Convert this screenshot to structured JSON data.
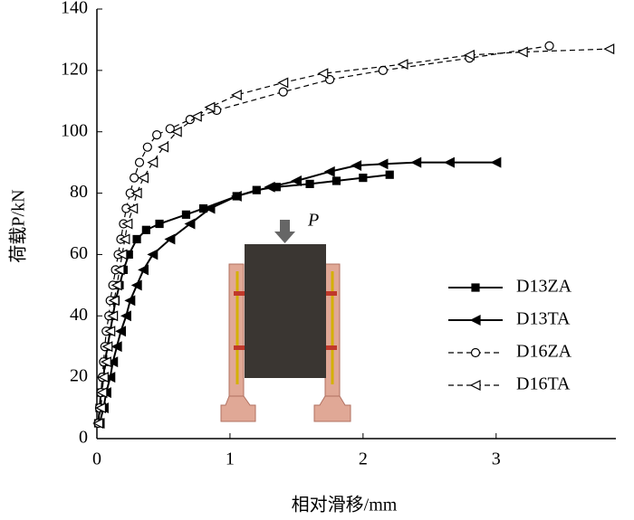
{
  "chart_data": {
    "type": "line",
    "xlabel": "相对滑移/mm",
    "ylabel": "荷载P/kN",
    "annotation": "P",
    "xlim": [
      0,
      3.9
    ],
    "ylim": [
      0,
      140
    ],
    "xticks": [
      0,
      1,
      2,
      3
    ],
    "yticks": [
      0,
      20,
      40,
      60,
      80,
      100,
      120,
      140
    ],
    "grid": false,
    "legend": "lower right",
    "series": [
      {
        "name": "D13ZA",
        "color": "#000000",
        "marker": "square",
        "filled": true,
        "dashed": false,
        "x": [
          0.01,
          0.02,
          0.03,
          0.05,
          0.06,
          0.08,
          0.1,
          0.12,
          0.14,
          0.17,
          0.2,
          0.24,
          0.3,
          0.37,
          0.47,
          0.67,
          0.8,
          1.05,
          1.2,
          1.35,
          1.6,
          1.8,
          2.0,
          2.2
        ],
        "values": [
          5,
          10,
          15,
          20,
          25,
          30,
          35,
          40,
          45,
          50,
          55,
          60,
          65,
          68,
          70,
          73,
          75,
          79,
          81,
          82,
          83,
          84,
          85,
          86
        ]
      },
      {
        "name": "D13TA",
        "color": "#000000",
        "marker": "triangle-left",
        "filled": true,
        "dashed": false,
        "x": [
          0.02,
          0.05,
          0.07,
          0.1,
          0.12,
          0.15,
          0.18,
          0.22,
          0.25,
          0.3,
          0.35,
          0.42,
          0.55,
          0.7,
          0.85,
          1.05,
          1.3,
          1.5,
          1.75,
          1.95,
          2.15,
          2.4,
          2.65,
          3.0
        ],
        "values": [
          5,
          10,
          15,
          20,
          25,
          30,
          35,
          40,
          45,
          50,
          55,
          60,
          65,
          70,
          75,
          79,
          82,
          84,
          87,
          89,
          89.5,
          90,
          90,
          90
        ]
      },
      {
        "name": "D16ZA",
        "color": "#000000",
        "marker": "circle",
        "filled": false,
        "dashed": true,
        "x": [
          0.01,
          0.02,
          0.03,
          0.04,
          0.05,
          0.06,
          0.07,
          0.09,
          0.1,
          0.12,
          0.14,
          0.16,
          0.18,
          0.2,
          0.22,
          0.25,
          0.28,
          0.32,
          0.38,
          0.45,
          0.55,
          0.7,
          0.9,
          1.4,
          1.75,
          2.15,
          2.8,
          3.4
        ],
        "values": [
          5,
          10,
          15,
          20,
          25,
          30,
          35,
          40,
          45,
          50,
          55,
          60,
          65,
          70,
          75,
          80,
          85,
          90,
          95,
          99,
          101,
          104,
          107,
          113,
          117,
          120,
          124,
          128
        ]
      },
      {
        "name": "D16TA",
        "color": "#000000",
        "marker": "triangle-left",
        "filled": false,
        "dashed": true,
        "x": [
          0.01,
          0.03,
          0.04,
          0.05,
          0.07,
          0.08,
          0.1,
          0.12,
          0.13,
          0.15,
          0.17,
          0.19,
          0.21,
          0.23,
          0.27,
          0.3,
          0.35,
          0.42,
          0.5,
          0.6,
          0.75,
          0.85,
          1.05,
          1.4,
          1.7,
          2.3,
          2.8,
          3.2,
          3.85
        ],
        "values": [
          5,
          10,
          15,
          20,
          25,
          30,
          35,
          40,
          45,
          50,
          55,
          60,
          65,
          70,
          75,
          80,
          85,
          90,
          95,
          100,
          105,
          108,
          112,
          116,
          119,
          122,
          125,
          126,
          127
        ]
      }
    ]
  }
}
